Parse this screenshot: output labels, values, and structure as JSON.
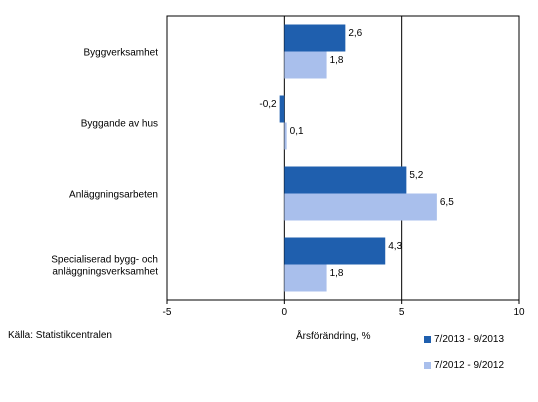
{
  "chart_data": {
    "type": "bar",
    "orientation": "horizontal",
    "categories": [
      "Byggverksamhet",
      "Byggande av hus",
      "Anläggningsarbeten",
      "Specialiserad bygg- och anläggningsverksamhet"
    ],
    "category_lines": [
      [
        "Byggverksamhet"
      ],
      [
        "Byggande av hus"
      ],
      [
        "Anläggningsarbeten"
      ],
      [
        "Specialiserad bygg- och",
        "anläggningsverksamhet"
      ]
    ],
    "series": [
      {
        "name": "7/2013 - 9/2013",
        "values": [
          2.6,
          -0.2,
          5.2,
          4.3
        ],
        "labels": [
          "2,6",
          "-0,2",
          "5,2",
          "4,3"
        ],
        "color": "#1f5fae"
      },
      {
        "name": "7/2012 - 9/2012",
        "values": [
          1.8,
          0.1,
          6.5,
          1.8
        ],
        "labels": [
          "1,8",
          "0,1",
          "6,5",
          "1,8"
        ],
        "color": "#a9bfec"
      }
    ],
    "xlim": [
      -5,
      10
    ],
    "xticks": [
      -5,
      0,
      5,
      10
    ],
    "xtick_labels": [
      "-5",
      "0",
      "5",
      "10"
    ],
    "xlabel": "Årsförändring, %",
    "gridlines": [
      5
    ],
    "legend_position": "bottom-right"
  },
  "source": "Källa: Statistikcentralen"
}
